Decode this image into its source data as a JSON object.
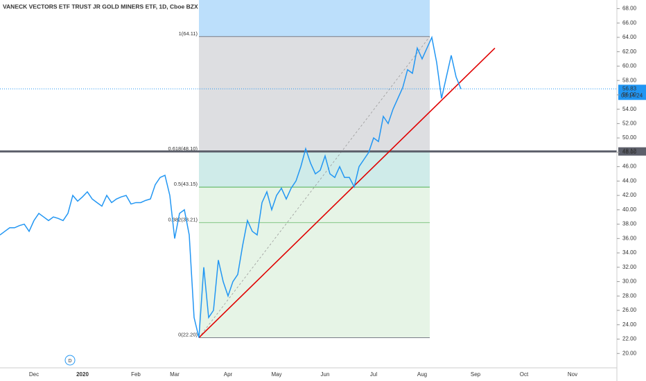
{
  "chart_data": {
    "type": "line",
    "title": "VANECK VECTORS ETF TRUST JR GOLD MINERS ETF, 1D, Cboe BZX",
    "categories": [
      null,
      null,
      null,
      null,
      null,
      null,
      null,
      "Dec",
      null,
      null,
      null,
      null,
      null,
      null,
      null,
      null,
      null,
      "2020",
      null,
      null,
      null,
      null,
      null,
      null,
      null,
      null,
      null,
      null,
      "Feb",
      null,
      null,
      null,
      null,
      null,
      null,
      null,
      "Mar",
      null,
      null,
      null,
      null,
      null,
      null,
      null,
      null,
      null,
      null,
      "Apr",
      null,
      null,
      null,
      null,
      null,
      null,
      null,
      null,
      null,
      "May",
      null,
      null,
      null,
      null,
      null,
      null,
      null,
      null,
      null,
      "Jun",
      null,
      null,
      null,
      null,
      null,
      null,
      null,
      null,
      null,
      "Jul",
      null,
      null,
      null,
      null,
      null,
      null,
      null,
      null,
      null,
      "Aug",
      null,
      null,
      null,
      null,
      null,
      null,
      null,
      null,
      null,
      null,
      "Sep",
      null,
      null,
      null,
      null,
      null,
      null,
      null,
      null,
      null,
      "Oct",
      null,
      null,
      null,
      null,
      null,
      null,
      null,
      null,
      null,
      "Nov",
      null,
      null,
      null,
      null,
      null,
      null,
      null,
      null
    ],
    "series": [
      {
        "color": "#2196f3",
        "values": [
          36.5,
          37,
          37.5,
          37.5,
          37.8,
          38,
          37,
          38.5,
          39.5,
          39,
          38.5,
          39,
          38.8,
          38.5,
          39.5,
          42,
          41.2,
          41.8,
          42.5,
          41.5,
          41,
          40.5,
          42,
          41,
          41.5,
          41.8,
          42,
          40.8,
          41,
          41,
          41.3,
          41.5,
          43.5,
          44.5,
          44.8,
          42,
          36,
          39.5,
          40,
          36.5,
          25,
          22.2,
          32,
          25,
          26,
          33,
          30,
          28,
          30,
          31,
          35,
          38.5,
          37,
          36.5,
          41,
          42.5,
          40,
          42,
          43,
          41.5,
          43,
          44,
          46,
          48.5,
          46.5,
          45,
          45.5,
          47.5,
          45,
          44.5,
          46,
          44.5,
          44.5,
          43.2,
          46,
          47,
          48,
          50,
          49.5,
          53,
          52,
          54,
          55.5,
          57,
          59.5,
          59,
          62.5,
          61,
          62.5,
          64,
          60.5,
          55.5,
          58.5,
          61.5,
          58.5,
          56.83,
          null,
          null,
          null,
          null,
          null,
          null,
          null,
          null,
          null,
          null,
          null,
          null,
          null,
          null,
          null,
          null,
          null,
          null,
          null,
          null,
          null,
          null,
          null,
          null,
          null,
          null,
          null,
          null,
          null,
          null,
          null
        ]
      }
    ],
    "ylim": [
      18,
      69.2
    ],
    "yticks": [
      {
        "value": 20,
        "label": "20.00"
      },
      {
        "value": 22,
        "label": "22.00"
      },
      {
        "value": 24,
        "label": "24.00"
      },
      {
        "value": 26,
        "label": "26.00"
      },
      {
        "value": 28,
        "label": "28.00"
      },
      {
        "value": 30,
        "label": "30.00"
      },
      {
        "value": 32,
        "label": "32.00"
      },
      {
        "value": 34,
        "label": "34.00"
      },
      {
        "value": 36,
        "label": "36.00"
      },
      {
        "value": 38,
        "label": "38.00"
      },
      {
        "value": 40,
        "label": "40.00"
      },
      {
        "value": 42,
        "label": "42.00"
      },
      {
        "value": 44,
        "label": "44.00"
      },
      {
        "value": 46,
        "label": "46.00"
      },
      {
        "value": 48,
        "label": "48.00"
      },
      {
        "value": 50,
        "label": "50.00"
      },
      {
        "value": 52,
        "label": "52.00"
      },
      {
        "value": 54,
        "label": "54.00"
      },
      {
        "value": 56,
        "label": "56.00"
      },
      {
        "value": 58,
        "label": "58.00"
      },
      {
        "value": 60,
        "label": "60.00"
      },
      {
        "value": 62,
        "label": "62.00"
      },
      {
        "value": 64,
        "label": "64.00"
      },
      {
        "value": 66,
        "label": "66.00"
      },
      {
        "value": 68,
        "label": "68.00"
      }
    ],
    "fib_levels": [
      {
        "value": 64.11,
        "label": "1(64.11)",
        "color": "#787b86"
      },
      {
        "value": 48.1,
        "label": "0.618(48.10)",
        "color": "#26a69a"
      },
      {
        "value": 43.15,
        "label": "0.5(43.15)",
        "color": "#4caf50"
      },
      {
        "value": 38.21,
        "label": "0.382(38.21)",
        "color": "#81c784"
      },
      {
        "value": 22.2,
        "label": "0(22.20)",
        "color": "#787b86"
      }
    ],
    "trend_line": {
      "values": [
        22.2,
        62.5
      ],
      "color": "#e00000"
    },
    "price_lines": [
      {
        "value": 48.12,
        "label": "48.12",
        "color": "#5d606b"
      },
      {
        "value": 56.83,
        "label": "56.83",
        "timer": "03:14:24",
        "color": "#2196f3"
      }
    ],
    "badge": "D"
  }
}
